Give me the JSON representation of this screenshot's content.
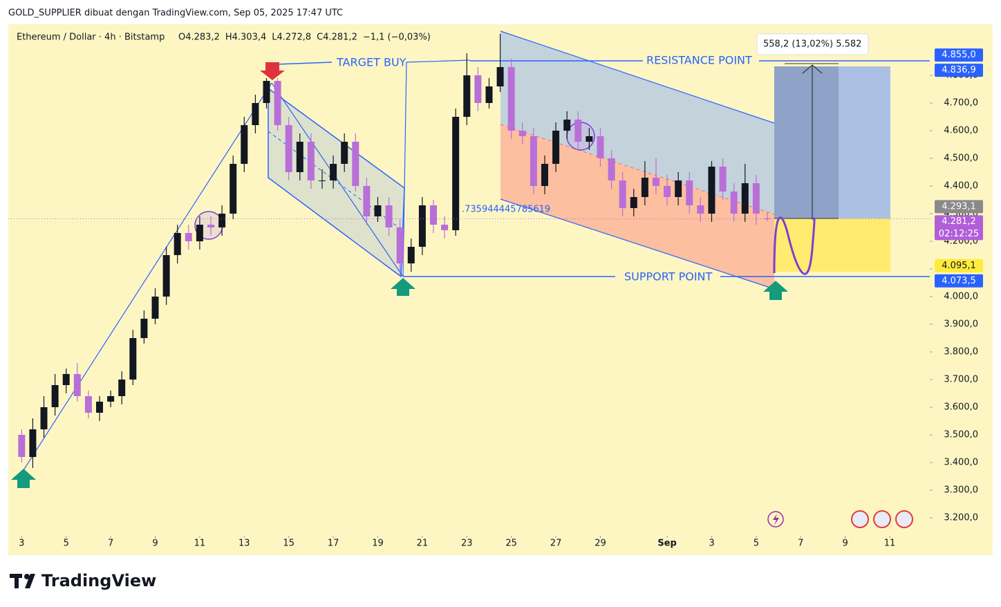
{
  "chart_data": {
    "type": "candlestick",
    "caption": "GOLD_SUPPLIER dibuat dengan TradingView.com, Sep 05, 2025 17:47 UTC",
    "symbol": "Ethereum / Dollar · 4h · Bitstamp",
    "ohlc_legend": [
      "O4.283,2",
      "H4.303,4",
      "L4.272,8",
      "C4.281,2",
      "−1,1 (−0,03%)"
    ],
    "up_color": "#131722",
    "down_color": "#b86fd8",
    "x": [
      3,
      3.5,
      4,
      4.5,
      5,
      5.5,
      6,
      6.5,
      7,
      7.5,
      8,
      8.5,
      9,
      9.5,
      10,
      10.5,
      11,
      11.5,
      12,
      12.5,
      13,
      13.5,
      14,
      14.5,
      15,
      15.5,
      16,
      16.5,
      17,
      17.5,
      18,
      18.5,
      19,
      19.5,
      20,
      20.5,
      21,
      21.5,
      22,
      22.5,
      23,
      23.5,
      24,
      24.5,
      25,
      25.5,
      26,
      26.5,
      27,
      27.5,
      28,
      28.5,
      29,
      29.5,
      30,
      30.5,
      31,
      31.5,
      32,
      32.5,
      33,
      33.5,
      34,
      34.5,
      35,
      35.5,
      36,
      36.5
    ],
    "open": [
      3500,
      3420,
      3520,
      3600,
      3680,
      3720,
      3640,
      3580,
      3620,
      3640,
      3700,
      3850,
      3920,
      4000,
      4150,
      4230,
      4200,
      4260,
      4250,
      4300,
      4480,
      4620,
      4700,
      4780,
      4620,
      4450,
      4560,
      4420,
      4420,
      4480,
      4560,
      4400,
      4290,
      4330,
      4250,
      4120,
      4180,
      4330,
      4260,
      4240,
      4650,
      4800,
      4700,
      4760,
      4830,
      4600,
      4580,
      4400,
      4480,
      4600,
      4640,
      4560,
      4580,
      4500,
      4420,
      4320,
      4360,
      4430,
      4400,
      4360,
      4420,
      4330,
      4300,
      4470,
      4380,
      4300,
      4410,
      4283.2
    ],
    "high": [
      3520,
      3560,
      3640,
      3720,
      3740,
      3760,
      3660,
      3640,
      3660,
      3730,
      3880,
      3950,
      4030,
      4180,
      4260,
      4260,
      4290,
      4290,
      4330,
      4510,
      4650,
      4730,
      4790,
      4790,
      4650,
      4590,
      4590,
      4460,
      4510,
      4590,
      4590,
      4430,
      4360,
      4360,
      4280,
      4210,
      4360,
      4350,
      4290,
      4680,
      4880,
      4830,
      4790,
      4950,
      4860,
      4630,
      4610,
      4510,
      4630,
      4670,
      4670,
      4610,
      4610,
      4530,
      4450,
      4390,
      4490,
      4500,
      4440,
      4450,
      4450,
      4360,
      4490,
      4500,
      4410,
      4480,
      4440,
      4303.4
    ],
    "low": [
      3400,
      3380,
      3490,
      3570,
      3650,
      3620,
      3560,
      3550,
      3600,
      3610,
      3680,
      3830,
      3900,
      3970,
      4120,
      4170,
      4170,
      4220,
      4220,
      4280,
      4450,
      4590,
      4680,
      4600,
      4420,
      4420,
      4390,
      4390,
      4390,
      4450,
      4380,
      4260,
      4270,
      4220,
      4073.5,
      4090,
      4150,
      4230,
      4210,
      4220,
      4620,
      4670,
      4680,
      4740,
      4570,
      4550,
      4370,
      4370,
      4450,
      4570,
      4530,
      4530,
      4470,
      4390,
      4290,
      4290,
      4330,
      4370,
      4330,
      4330,
      4300,
      4270,
      4270,
      4350,
      4270,
      4270,
      4260,
      4272.8
    ],
    "close": [
      3420,
      3520,
      3600,
      3680,
      3720,
      3640,
      3580,
      3620,
      3640,
      3700,
      3850,
      3920,
      4000,
      4150,
      4230,
      4200,
      4260,
      4250,
      4300,
      4480,
      4620,
      4700,
      4780,
      4620,
      4450,
      4560,
      4420,
      4420,
      4480,
      4560,
      4400,
      4290,
      4330,
      4250,
      4120,
      4180,
      4330,
      4260,
      4240,
      4650,
      4800,
      4700,
      4760,
      4830,
      4600,
      4580,
      4400,
      4480,
      4600,
      4640,
      4560,
      4580,
      4500,
      4420,
      4320,
      4360,
      4430,
      4400,
      4360,
      4420,
      4330,
      4300,
      4470,
      4380,
      4300,
      4410,
      4300,
      4281.2
    ],
    "xlim": [
      2.4,
      43.8
    ],
    "ylim": [
      3135,
      4985
    ],
    "xticks": [
      3,
      5,
      7,
      9,
      11,
      13,
      15,
      17,
      19,
      21,
      23,
      25,
      27,
      29,
      {
        "value": 32,
        "label": "Sep"
      },
      {
        "value": 34,
        "label": "3"
      },
      {
        "value": 36,
        "label": "5"
      },
      {
        "value": 38,
        "label": "7"
      },
      {
        "value": 40,
        "label": "9"
      },
      {
        "value": 42,
        "label": "11"
      }
    ],
    "yticks": [
      {
        "value": 3200,
        "label": "3.200,0"
      },
      {
        "value": 3300,
        "label": "3.300,0"
      },
      {
        "value": 3400,
        "label": "3.400,0"
      },
      {
        "value": 3500,
        "label": "3.500,0"
      },
      {
        "value": 3600,
        "label": "3.600,0"
      },
      {
        "value": 3700,
        "label": "3.700,0"
      },
      {
        "value": 3800,
        "label": "3.800,0"
      },
      {
        "value": 3900,
        "label": "3.900,0"
      },
      {
        "value": 4000,
        "label": "4.000,0"
      },
      {
        "value": 4100,
        "label": "4.100,0"
      },
      {
        "value": 4200,
        "label": "4.200,0"
      },
      {
        "value": 4300,
        "label": "4.300,0"
      },
      {
        "value": 4400,
        "label": "4.400,0"
      },
      {
        "value": 4500,
        "label": "4.500,0"
      },
      {
        "value": 4600,
        "label": "4.600,0"
      },
      {
        "value": 4700,
        "label": "4.700,0"
      },
      {
        "value": 4800,
        "label": "4.800,0"
      }
    ],
    "price_labels": [
      {
        "value": 4855,
        "label": "4.855,0",
        "color": "#2962ff"
      },
      {
        "value": 4836.9,
        "label": "4.836,9",
        "color": "#2962ff"
      },
      {
        "value": 4293.1,
        "label": "4.293,1",
        "color": "#8a8a8a"
      },
      {
        "value": 4281.2,
        "label": "4.281,2",
        "color": "#b05fd8",
        "countdown": "02:12:25"
      },
      {
        "value": 4095.1,
        "label": "4.095,1",
        "color": "#ffeb3b"
      },
      {
        "value": 4073.5,
        "label": "4.073,5",
        "color": "#2962ff"
      }
    ],
    "annotations": {
      "target_buy": "TARGET  BUY",
      "resistance": "RESISTANCE  POINT",
      "support": "SUPPORT  POINT",
      "fib_text": ".735944445785619",
      "measure": "558,2 (13,02%) 5.582"
    },
    "brand": "TradingView"
  }
}
